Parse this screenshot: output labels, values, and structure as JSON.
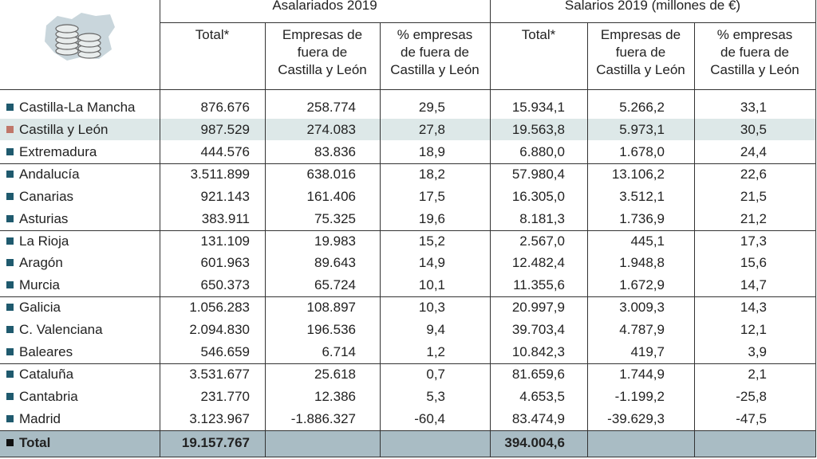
{
  "header": {
    "groups": [
      "Asalariados 2019",
      "Salarios 2019 (millones de €)"
    ],
    "columns": [
      [
        "Total*"
      ],
      [
        "Empresas de",
        "fuera de",
        "Castilla y León"
      ],
      [
        "% empresas",
        "de fuera de",
        "Castilla y León"
      ],
      [
        "Total*"
      ],
      [
        "Empresas de",
        "fuera de",
        "Castilla y León"
      ],
      [
        "% empresas",
        "de fuera de",
        "Castilla y León"
      ]
    ]
  },
  "table": {
    "rows": [
      {
        "name": "Castilla-La Mancha",
        "values": [
          "876.676",
          "258.774",
          "29,5",
          "15.934,1",
          "5.266,2",
          "33,1"
        ]
      },
      {
        "name": "Castilla y León",
        "values": [
          "987.529",
          "274.083",
          "27,8",
          "19.563,8",
          "5.973,1",
          "30,5"
        ]
      },
      {
        "name": "Extremadura",
        "values": [
          "444.576",
          "83.836",
          "18,9",
          "6.880,0",
          "1.678,0",
          "24,4"
        ]
      },
      {
        "name": "Andalucía",
        "values": [
          "3.511.899",
          "638.016",
          "18,2",
          "57.980,4",
          "13.106,2",
          "22,6"
        ]
      },
      {
        "name": "Canarias",
        "values": [
          "921.143",
          "161.406",
          "17,5",
          "16.305,0",
          "3.512,1",
          "21,5"
        ]
      },
      {
        "name": "Asturias",
        "values": [
          "383.911",
          "75.325",
          "19,6",
          "8.181,3",
          "1.736,9",
          "21,2"
        ]
      },
      {
        "name": "La Rioja",
        "values": [
          "131.109",
          "19.983",
          "15,2",
          "2.567,0",
          "445,1",
          "17,3"
        ]
      },
      {
        "name": "Aragón",
        "values": [
          "601.963",
          "89.643",
          "14,9",
          "12.482,4",
          "1.948,8",
          "15,6"
        ]
      },
      {
        "name": "Murcia",
        "values": [
          "650.373",
          "65.724",
          "10,1",
          "11.355,6",
          "1.672,9",
          "14,7"
        ]
      },
      {
        "name": "Galicia",
        "values": [
          "1.056.283",
          "108.897",
          "10,3",
          "20.997,9",
          "3.009,3",
          "14,3"
        ]
      },
      {
        "name": "C. Valenciana",
        "values": [
          "2.094.830",
          "196.536",
          "9,4",
          "39.703,4",
          "4.787,9",
          "12,1"
        ]
      },
      {
        "name": "Baleares",
        "values": [
          "546.659",
          "6.714",
          "1,2",
          "10.842,3",
          "419,7",
          "3,9"
        ]
      },
      {
        "name": "Cataluña",
        "values": [
          "3.531.677",
          "25.618",
          "0,7",
          "81.659,6",
          "1.744,9",
          "2,1"
        ]
      },
      {
        "name": "Cantabria",
        "values": [
          "231.770",
          "12.386",
          "5,3",
          "4.653,5",
          "-1.199,2",
          "-25,8"
        ]
      },
      {
        "name": "Madrid",
        "values": [
          "3.123.967",
          "-1.886.327",
          "-60,4",
          "83.474,9",
          "-39.629,3",
          "-47,5"
        ]
      }
    ],
    "total": {
      "name": "Total",
      "asalariados_total": "19.157.767",
      "salarios_total": "394.004,6"
    }
  }
}
